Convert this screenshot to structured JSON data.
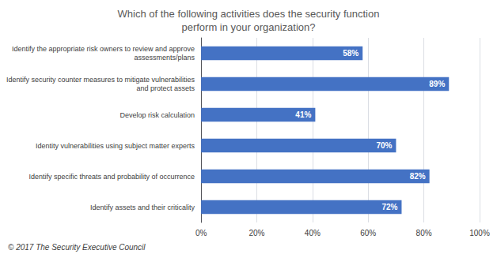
{
  "chart_data": {
    "type": "bar",
    "orientation": "horizontal",
    "title": "Which of the following activities does the security function\nperform in your organization?",
    "categories": [
      "Identify assets and their criticality",
      "Identify specific threats and probability of occurrence",
      "Identity vulnerabilities using subject matter experts",
      "Develop risk calculation",
      "Identify security counter measures to mitigate vulnerabilities\nand protect assets",
      "Identify the appropriate risk owners to review and approve\nassessments/plans"
    ],
    "values": [
      72,
      82,
      70,
      41,
      89,
      58
    ],
    "value_labels": [
      "72%",
      "82%",
      "70%",
      "41%",
      "89%",
      "58%"
    ],
    "data_labels": true,
    "color": "#4472C4",
    "xlim": [
      0,
      100
    ],
    "xticks": [
      {
        "value": 0,
        "label": "0%"
      },
      {
        "value": 20,
        "label": "20%"
      },
      {
        "value": 40,
        "label": "40%"
      },
      {
        "value": 60,
        "label": "60%"
      },
      {
        "value": 80,
        "label": "80%"
      },
      {
        "value": 100,
        "label": "100%"
      }
    ],
    "grid": true,
    "annotations": [
      "© 2017 The Security Executive Council"
    ]
  }
}
